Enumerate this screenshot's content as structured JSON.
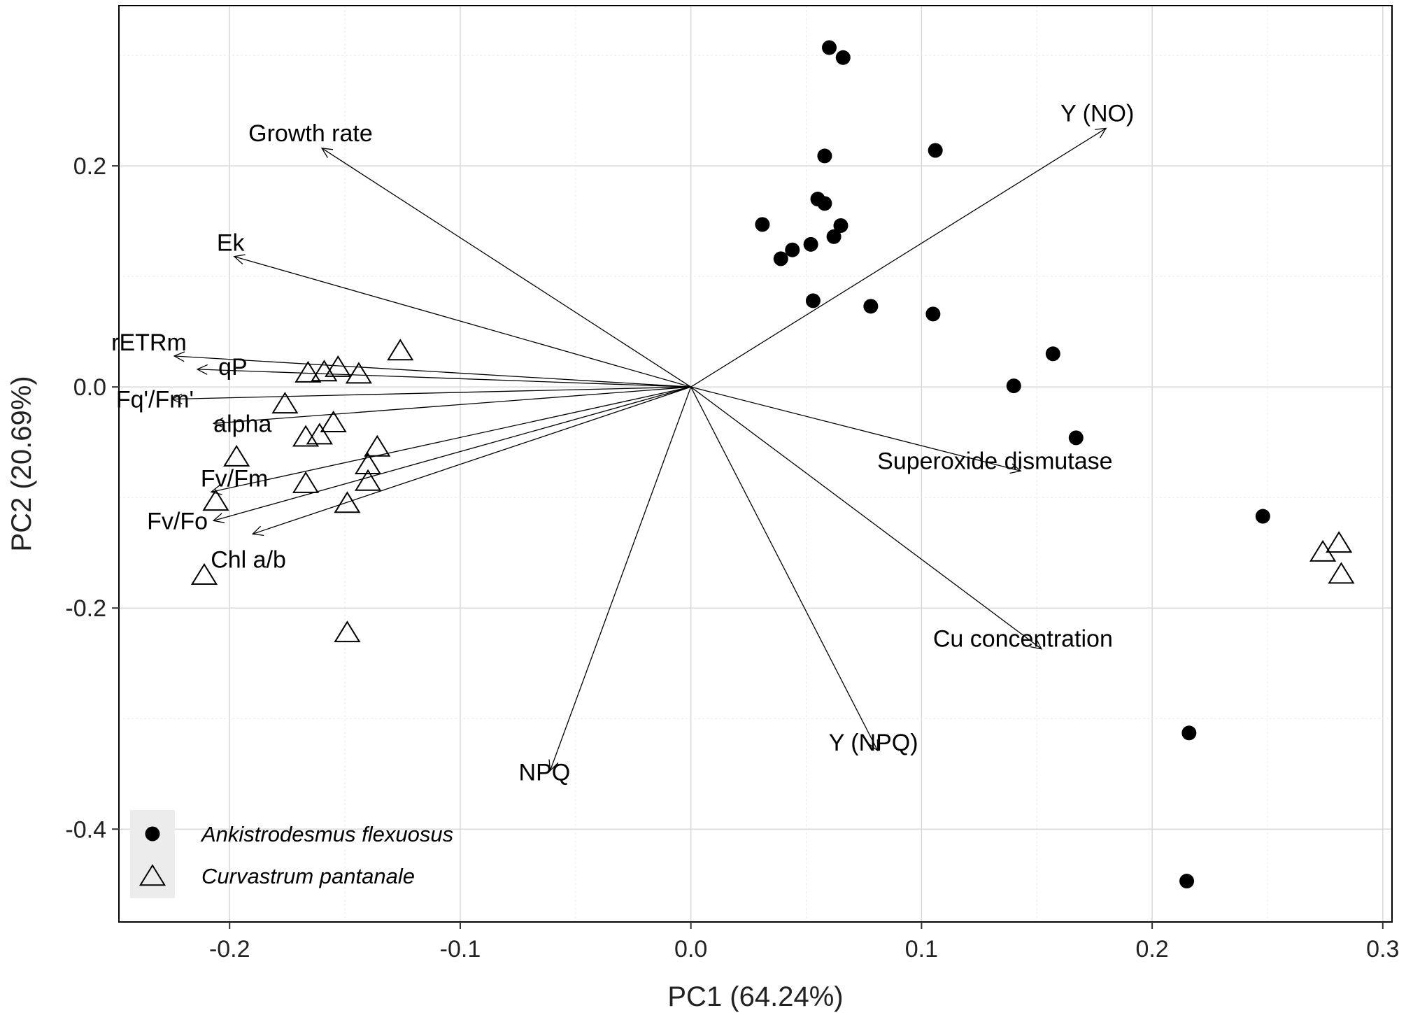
{
  "chart_data": {
    "type": "scatter",
    "xlabel": "PC1 (64.24%)",
    "ylabel": "PC2 (20.69%)",
    "xlim": [
      -0.248,
      0.304
    ],
    "ylim": [
      -0.484,
      0.345
    ],
    "x_ticks": [
      -0.2,
      -0.1,
      0.0,
      0.1,
      0.2,
      0.3
    ],
    "x_tick_labels": [
      "-0.2",
      "-0.1",
      "0.0",
      "0.1",
      "0.2",
      "0.3"
    ],
    "y_ticks": [
      0.2,
      0.0,
      -0.2,
      -0.4
    ],
    "y_tick_labels": [
      "0.2",
      "0.0",
      "-0.2",
      "-0.4"
    ],
    "grid": true,
    "legend_position": "bottom-left",
    "series": [
      {
        "name": "Ankistrodesmus flexuosus",
        "marker": "filled-circle",
        "points": [
          {
            "x": 0.06,
            "y": 0.307
          },
          {
            "x": 0.066,
            "y": 0.298
          },
          {
            "x": 0.106,
            "y": 0.214
          },
          {
            "x": 0.058,
            "y": 0.209
          },
          {
            "x": 0.055,
            "y": 0.17
          },
          {
            "x": 0.058,
            "y": 0.166
          },
          {
            "x": 0.031,
            "y": 0.147
          },
          {
            "x": 0.065,
            "y": 0.146
          },
          {
            "x": 0.062,
            "y": 0.136
          },
          {
            "x": 0.052,
            "y": 0.129
          },
          {
            "x": 0.044,
            "y": 0.124
          },
          {
            "x": 0.039,
            "y": 0.116
          },
          {
            "x": 0.053,
            "y": 0.078
          },
          {
            "x": 0.078,
            "y": 0.073
          },
          {
            "x": 0.105,
            "y": 0.066
          },
          {
            "x": 0.157,
            "y": 0.03
          },
          {
            "x": 0.14,
            "y": 0.001
          },
          {
            "x": 0.167,
            "y": -0.046
          },
          {
            "x": 0.248,
            "y": -0.117
          },
          {
            "x": 0.216,
            "y": -0.313
          },
          {
            "x": 0.215,
            "y": -0.447
          }
        ]
      },
      {
        "name": "Curvastrum pantanale",
        "marker": "open-triangle",
        "points": [
          {
            "x": -0.126,
            "y": 0.033
          },
          {
            "x": -0.153,
            "y": 0.018
          },
          {
            "x": -0.159,
            "y": 0.014
          },
          {
            "x": -0.166,
            "y": 0.013
          },
          {
            "x": -0.144,
            "y": 0.012
          },
          {
            "x": -0.176,
            "y": -0.015
          },
          {
            "x": -0.155,
            "y": -0.032
          },
          {
            "x": -0.161,
            "y": -0.043
          },
          {
            "x": -0.167,
            "y": -0.045
          },
          {
            "x": -0.136,
            "y": -0.054
          },
          {
            "x": -0.197,
            "y": -0.063
          },
          {
            "x": -0.14,
            "y": -0.07
          },
          {
            "x": -0.14,
            "y": -0.085
          },
          {
            "x": -0.167,
            "y": -0.087
          },
          {
            "x": -0.206,
            "y": -0.103
          },
          {
            "x": -0.149,
            "y": -0.105
          },
          {
            "x": -0.211,
            "y": -0.17
          },
          {
            "x": -0.149,
            "y": -0.222
          },
          {
            "x": 0.281,
            "y": -0.141
          },
          {
            "x": 0.274,
            "y": -0.149
          },
          {
            "x": 0.282,
            "y": -0.169
          }
        ]
      }
    ],
    "vectors": [
      {
        "name": "Growth rate",
        "x": -0.16,
        "y": 0.216
      },
      {
        "name": "Ek",
        "x": -0.198,
        "y": 0.118
      },
      {
        "name": "rETRm",
        "x": -0.224,
        "y": 0.028
      },
      {
        "name": "qP",
        "x": -0.214,
        "y": 0.016
      },
      {
        "name": "Fq'/Fm'",
        "x": -0.225,
        "y": -0.011
      },
      {
        "name": "alpha",
        "x": -0.207,
        "y": -0.033
      },
      {
        "name": "Fv/Fm",
        "x": -0.208,
        "y": -0.095
      },
      {
        "name": "Fv/Fo",
        "x": -0.207,
        "y": -0.121
      },
      {
        "name": "Chl a/b",
        "x": -0.19,
        "y": -0.133
      },
      {
        "name": "Y (NO)",
        "x": 0.18,
        "y": 0.234
      },
      {
        "name": "Superoxide dismutase",
        "x": 0.143,
        "y": -0.076
      },
      {
        "name": "Cu concentration",
        "x": 0.152,
        "y": -0.237
      },
      {
        "name": "NPQ",
        "x": -0.061,
        "y": -0.347
      },
      {
        "name": "Y (NPQ)",
        "x": 0.081,
        "y": -0.329
      }
    ]
  }
}
